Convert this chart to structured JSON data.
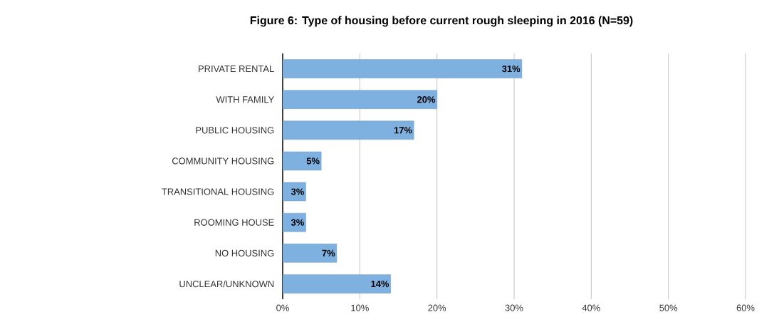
{
  "chart_data": {
    "type": "bar",
    "orientation": "horizontal",
    "title": "Figure 6: Type of housing before current rough sleeping in 2016 (N=59)",
    "categories": [
      "PRIVATE RENTAL",
      "WITH FAMILY",
      "PUBLIC HOUSING",
      "COMMUNITY HOUSING",
      "TRANSITIONAL HOUSING",
      "ROOMING HOUSE",
      "NO HOUSING",
      "UNCLEAR/UNKNOWN"
    ],
    "values": [
      31,
      20,
      17,
      5,
      3,
      3,
      7,
      14
    ],
    "value_labels": [
      "31%",
      "20%",
      "17%",
      "5%",
      "3%",
      "3%",
      "7%",
      "14%"
    ],
    "color": "#7eb1e0",
    "xlim": [
      0,
      60
    ],
    "xticks": [
      {
        "value": 0,
        "label": "0%"
      },
      {
        "value": 10,
        "label": "10%"
      },
      {
        "value": 20,
        "label": "20%"
      },
      {
        "value": 30,
        "label": "30%"
      },
      {
        "value": 40,
        "label": "40%"
      },
      {
        "value": 50,
        "label": "50%"
      },
      {
        "value": 60,
        "label": "60%"
      }
    ],
    "grid": "x"
  }
}
